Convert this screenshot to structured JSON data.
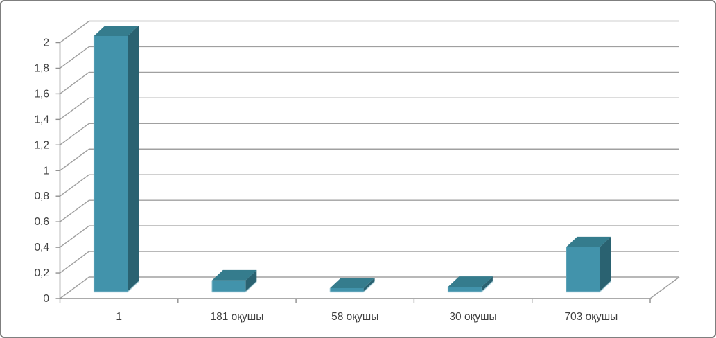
{
  "chart_data": {
    "type": "bar",
    "style": "3d-column",
    "title": "",
    "xlabel": "",
    "ylabel": "",
    "categories": [
      "1",
      "181 оқушы",
      "58 оқушы",
      "30 оқушы",
      "703 оқушы"
    ],
    "values": [
      2,
      0.09,
      0.03,
      0.04,
      0.35
    ],
    "ylim": [
      0,
      2
    ],
    "ytick_step": 0.2,
    "ytick_labels": [
      "0",
      "0,2",
      "0,4",
      "0,6",
      "0,8",
      "1",
      "1,2",
      "1,4",
      "1,6",
      "1,8",
      "2"
    ],
    "decimal_separator": ",",
    "grid": true,
    "legend": false,
    "colors": {
      "bar_front": "#4293AB",
      "bar_top": "#357C8D",
      "bar_side": "#2A6271",
      "bar_edge_highlight": "#AFD3DE",
      "gridline": "#A0A0A0",
      "axis_line": "#8F8F8F",
      "axis_text": "#3F3F3F",
      "frame_border": "#7F7F7F",
      "background": "#FFFFFF"
    }
  }
}
